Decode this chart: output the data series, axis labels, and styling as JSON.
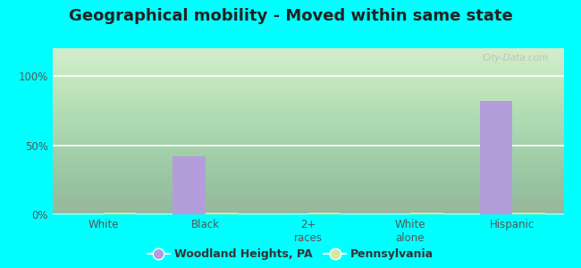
{
  "title": "Geographical mobility - Moved within same state",
  "categories": [
    "White",
    "Black",
    "2+\nraces",
    "White\nalone",
    "Hispanic"
  ],
  "woodland_values": [
    0.0,
    42.0,
    0.0,
    0.0,
    82.0
  ],
  "pennsylvania_values": [
    1.2,
    1.2,
    1.2,
    1.2,
    1.2
  ],
  "woodland_color": "#b39ddb",
  "pennsylvania_color": "#d4e8a0",
  "bar_width": 0.32,
  "ylim": [
    0,
    120
  ],
  "ytick_labels": [
    "0%",
    "50%",
    "100%"
  ],
  "ytick_vals": [
    0,
    50,
    100
  ],
  "bg_color": "#00FFFF",
  "legend_label_1": "Woodland Heights, PA",
  "legend_label_2": "Pennsylvania",
  "title_fontsize": 13,
  "tick_fontsize": 8.5,
  "legend_fontsize": 9,
  "watermark": "City-Data.com"
}
